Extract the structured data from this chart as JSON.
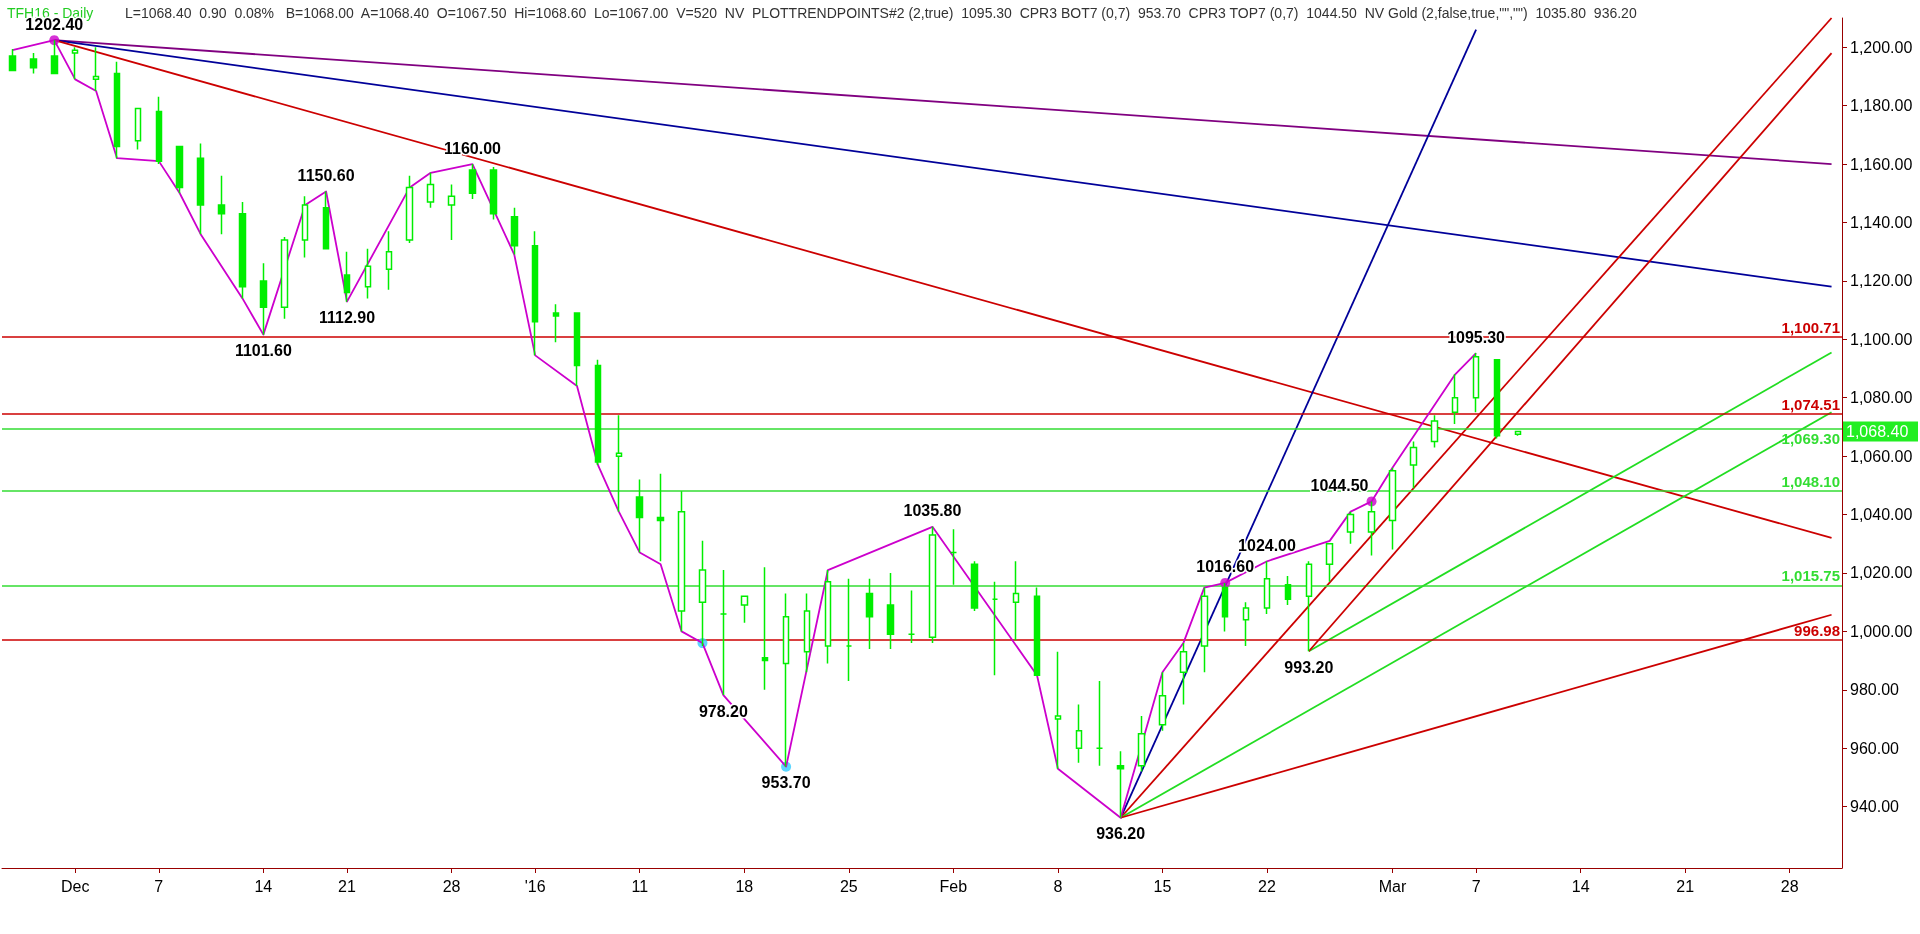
{
  "chart_data": {
    "type": "candlestick",
    "title": "TFH16 - Daily",
    "subtitle": "L=1068.40  0.90  0.08%   B=1068.00  A=1068.40  O=1067.50  Hi=1068.60  Lo=1067.00  V=520  NV  PLOTTRENDPOINTS#2 (2,true)  1095.30  CPR3 BOT7 (0,7)  953.70  CPR3 TOP7 (0,7)  1044.50  NV Gold (2,false,true,\"\",\"\")  1035.80  936.20",
    "color": "#00ee00",
    "categories": [
      null,
      null,
      null,
      "Dec",
      null,
      null,
      null,
      "7",
      null,
      null,
      null,
      null,
      "14",
      null,
      null,
      null,
      "21",
      null,
      null,
      null,
      null,
      "28",
      null,
      null,
      null,
      "'16",
      null,
      null,
      null,
      null,
      "11",
      null,
      null,
      null,
      null,
      "18",
      null,
      null,
      null,
      null,
      "25",
      null,
      null,
      null,
      null,
      "Feb",
      null,
      null,
      null,
      null,
      "8",
      null,
      null,
      null,
      null,
      "15",
      null,
      null,
      null,
      null,
      "22",
      null,
      null,
      null,
      null,
      null,
      "Mar",
      null,
      null,
      null,
      "7",
      null,
      null,
      null,
      null,
      "14",
      null,
      null,
      null,
      null,
      "21",
      null,
      null,
      null,
      null,
      "28",
      null,
      null
    ],
    "ohlc": [
      [
        1197,
        1199.4,
        1192,
        1192
      ],
      [
        1196,
        1198,
        1191,
        1193
      ],
      [
        1197,
        1202.4,
        1191,
        1191
      ],
      [
        1198,
        1200,
        1189,
        1199
      ],
      [
        1189,
        1200,
        1185,
        1190
      ],
      [
        1191,
        1195,
        1162,
        1166
      ],
      [
        1168,
        1179,
        1165,
        1179
      ],
      [
        1178,
        1183,
        1160,
        1161
      ],
      [
        1166,
        1166,
        1150,
        1152
      ],
      [
        1162,
        1167,
        1136,
        1146
      ],
      [
        1146,
        1156,
        1136,
        1143
      ],
      [
        1143,
        1147,
        1114,
        1118
      ],
      [
        1120,
        1126,
        1101.6,
        1111
      ],
      [
        1111,
        1135,
        1107,
        1134
      ],
      [
        1134,
        1149,
        1128,
        1146
      ],
      [
        1145,
        1150.6,
        1131,
        1131
      ],
      [
        1122,
        1130,
        1112.9,
        1116
      ],
      [
        1118,
        1131,
        1114,
        1125
      ],
      [
        1124,
        1137,
        1117,
        1130
      ],
      [
        1134,
        1156,
        1133,
        1152
      ],
      [
        1147,
        1157,
        1145,
        1153
      ],
      [
        1146,
        1153,
        1134,
        1149
      ],
      [
        1158,
        1160,
        1148,
        1150
      ],
      [
        1158,
        1159,
        1141,
        1143
      ],
      [
        1142,
        1145,
        1129,
        1132
      ],
      [
        1132,
        1137,
        1094.5,
        1106
      ],
      [
        1109,
        1112,
        1099,
        1108
      ],
      [
        1109,
        1109,
        1084,
        1091
      ],
      [
        1091,
        1093,
        1057,
        1058
      ],
      [
        1060,
        1074,
        1041,
        1061
      ],
      [
        1046,
        1052,
        1027,
        1039
      ],
      [
        1039,
        1054,
        1024,
        1038
      ],
      [
        1007,
        1048,
        1000,
        1041
      ],
      [
        1010,
        1031,
        995,
        1021
      ],
      [
        1006,
        1021,
        978.2,
        1006
      ],
      [
        1009,
        1012,
        1003,
        1012
      ],
      [
        991,
        1022,
        980,
        990
      ],
      [
        989,
        1013,
        953.7,
        1005
      ],
      [
        993,
        1013,
        986,
        1007
      ],
      [
        995,
        1021,
        989,
        1017
      ],
      [
        995,
        1018,
        983,
        995
      ],
      [
        1013,
        1018,
        994,
        1005
      ],
      [
        1009,
        1020,
        994,
        999
      ],
      [
        999,
        1014,
        996,
        999
      ],
      [
        998,
        1035.8,
        996,
        1033
      ],
      [
        1027,
        1035,
        1016,
        1027
      ],
      [
        1023,
        1024,
        1007,
        1008
      ],
      [
        1011,
        1017,
        985,
        1011
      ],
      [
        1010,
        1024,
        997,
        1013
      ],
      [
        1012,
        1015,
        985,
        985
      ],
      [
        970,
        993,
        953,
        971
      ],
      [
        960,
        975,
        955,
        966
      ],
      [
        960,
        983,
        954,
        960
      ],
      [
        954,
        959,
        936.2,
        953
      ],
      [
        954,
        971,
        952,
        965
      ],
      [
        968,
        986,
        966,
        978
      ],
      [
        986,
        996,
        975,
        993
      ],
      [
        995,
        1015,
        986,
        1012
      ],
      [
        1015,
        1016.6,
        1000,
        1005
      ],
      [
        1004,
        1010,
        995,
        1008
      ],
      [
        1008,
        1024,
        1006,
        1018
      ],
      [
        1016,
        1019,
        1009,
        1011
      ],
      [
        1012,
        1024,
        993.2,
        1023
      ],
      [
        1023,
        1030,
        1017,
        1030
      ],
      [
        1034,
        1041,
        1030,
        1040
      ],
      [
        1034,
        1044.5,
        1026,
        1041
      ],
      [
        1038,
        1056,
        1028,
        1055
      ],
      [
        1057,
        1065,
        1049,
        1063
      ],
      [
        1065,
        1074,
        1063,
        1072
      ],
      [
        1075,
        1088,
        1071,
        1080
      ],
      [
        1080,
        1095.3,
        1075,
        1094
      ],
      [
        1093,
        1093,
        1066,
        1067
      ],
      [
        1067.5,
        1068.6,
        1067,
        1068.4
      ],
      null,
      null,
      null,
      null,
      null,
      null,
      null,
      null,
      null,
      null,
      null,
      null,
      null,
      null,
      null
    ],
    "series": [
      {
        "type": "line",
        "color": "#cc00cc",
        "values": [
          1199,
          null,
          1202.4,
          1189,
          1185,
          1162,
          null,
          1161,
          1150,
          1136,
          null,
          1114,
          1101.6,
          null,
          1146,
          1150.6,
          1112.9,
          null,
          null,
          1152,
          1157,
          null,
          1160,
          null,
          1129,
          1094.5,
          null,
          1084,
          1057,
          1041,
          1027,
          1023,
          1000,
          996,
          978.2,
          null,
          null,
          953.7,
          null,
          1021,
          null,
          null,
          null,
          null,
          1035.8,
          null,
          null,
          null,
          null,
          985,
          953,
          null,
          null,
          936.2,
          null,
          986,
          996,
          1015,
          1016.6,
          null,
          1024,
          null,
          null,
          1031,
          1041,
          1044.5,
          1056,
          null,
          null,
          1088,
          1095.3,
          null,
          null,
          null,
          null,
          null,
          null,
          null,
          null,
          null,
          null,
          null,
          null,
          null,
          null,
          null,
          null,
          null
        ],
        "value_labels": [
          null,
          null,
          "1202.40",
          null,
          null,
          null,
          null,
          null,
          null,
          null,
          null,
          null,
          "1101.60",
          null,
          null,
          "1150.60",
          "1112.90",
          null,
          null,
          null,
          null,
          null,
          "1160.00",
          null,
          null,
          null,
          null,
          null,
          null,
          null,
          null,
          null,
          null,
          null,
          "978.20",
          null,
          null,
          "953.70",
          null,
          null,
          null,
          null,
          null,
          null,
          "1035.80",
          null,
          null,
          null,
          null,
          null,
          null,
          null,
          null,
          "936.20",
          null,
          null,
          null,
          null,
          "1016.60",
          null,
          "1024.00",
          null,
          null,
          null,
          null,
          "1044.50",
          null,
          null,
          null,
          null,
          "1095.30",
          null,
          null,
          null,
          null,
          null,
          null,
          null,
          null,
          null,
          null,
          null,
          null,
          null,
          null,
          null,
          null,
          null
        ]
      },
      {
        "type": "line",
        "color": "#800080",
        "values": [
          null,
          null,
          1202.4,
          null,
          null,
          null,
          null,
          null,
          null,
          null,
          null,
          null,
          null,
          null,
          null,
          null,
          null,
          null,
          null,
          null,
          null,
          null,
          null,
          null,
          null,
          null,
          null,
          null,
          null,
          null,
          null,
          null,
          null,
          null,
          null,
          null,
          null,
          null,
          null,
          null,
          null,
          null,
          null,
          null,
          null,
          null,
          null,
          null,
          null,
          null,
          null,
          null,
          null,
          null,
          null,
          null,
          null,
          null,
          null,
          null,
          null,
          null,
          null,
          null,
          null,
          null,
          null,
          null,
          null,
          null,
          null,
          null,
          null,
          null,
          null,
          null,
          null,
          null,
          null,
          null,
          null,
          null,
          null,
          null,
          null,
          null,
          null,
          1160
        ]
      },
      {
        "type": "line",
        "color": "#000099",
        "values": [
          null,
          null,
          1202.4,
          null,
          null,
          null,
          null,
          null,
          null,
          null,
          null,
          null,
          null,
          null,
          null,
          null,
          null,
          null,
          null,
          null,
          null,
          null,
          null,
          null,
          null,
          null,
          null,
          null,
          null,
          null,
          null,
          null,
          null,
          null,
          null,
          null,
          null,
          null,
          null,
          null,
          null,
          null,
          null,
          null,
          null,
          null,
          null,
          null,
          null,
          null,
          null,
          null,
          null,
          null,
          null,
          null,
          null,
          null,
          null,
          null,
          null,
          null,
          null,
          null,
          null,
          null,
          null,
          null,
          null,
          null,
          null,
          null,
          null,
          null,
          null,
          null,
          null,
          null,
          null,
          null,
          null,
          null,
          null,
          null,
          null,
          null,
          null,
          1118
        ]
      },
      {
        "type": "line",
        "color": "#cc0000",
        "values": [
          null,
          null,
          1202.4,
          null,
          null,
          null,
          null,
          null,
          null,
          null,
          null,
          null,
          null,
          null,
          null,
          null,
          null,
          null,
          null,
          null,
          null,
          null,
          null,
          null,
          null,
          null,
          null,
          null,
          null,
          null,
          null,
          null,
          null,
          null,
          null,
          null,
          null,
          null,
          null,
          null,
          null,
          null,
          null,
          null,
          null,
          null,
          null,
          null,
          null,
          null,
          null,
          null,
          null,
          null,
          null,
          null,
          null,
          null,
          null,
          null,
          null,
          null,
          null,
          null,
          null,
          null,
          null,
          null,
          null,
          null,
          null,
          null,
          null,
          null,
          null,
          null,
          null,
          null,
          null,
          null,
          null,
          null,
          null,
          null,
          null,
          null,
          null,
          1032
        ]
      },
      {
        "type": "line",
        "color": "#000099",
        "values": [
          null,
          null,
          null,
          null,
          null,
          null,
          null,
          null,
          null,
          null,
          null,
          null,
          null,
          null,
          null,
          null,
          null,
          null,
          null,
          null,
          null,
          null,
          null,
          null,
          null,
          null,
          null,
          null,
          null,
          null,
          null,
          null,
          null,
          null,
          null,
          null,
          null,
          null,
          null,
          null,
          null,
          null,
          null,
          null,
          null,
          null,
          null,
          null,
          null,
          null,
          null,
          null,
          null,
          936.2,
          null,
          null,
          null,
          null,
          null,
          null,
          null,
          null,
          null,
          null,
          null,
          null,
          null,
          null,
          null,
          null,
          1206,
          null,
          null,
          null,
          null,
          null,
          null,
          null,
          null,
          null,
          null,
          null,
          null,
          null,
          null,
          null,
          null,
          null
        ]
      },
      {
        "type": "line",
        "color": "#cc0000",
        "values": [
          null,
          null,
          null,
          null,
          null,
          null,
          null,
          null,
          null,
          null,
          null,
          null,
          null,
          null,
          null,
          null,
          null,
          null,
          null,
          null,
          null,
          null,
          null,
          null,
          null,
          null,
          null,
          null,
          null,
          null,
          null,
          null,
          null,
          null,
          null,
          null,
          null,
          null,
          null,
          null,
          null,
          null,
          null,
          null,
          null,
          null,
          null,
          null,
          null,
          null,
          null,
          null,
          null,
          936.2,
          null,
          null,
          null,
          null,
          null,
          null,
          null,
          null,
          null,
          null,
          null,
          null,
          null,
          null,
          null,
          null,
          null,
          null,
          null,
          null,
          null,
          null,
          null,
          null,
          null,
          null,
          null,
          null,
          null,
          null,
          null,
          null,
          null,
          1210
        ]
      },
      {
        "type": "line",
        "color": "#cc0000",
        "values": [
          null,
          null,
          null,
          null,
          null,
          null,
          null,
          null,
          null,
          null,
          null,
          null,
          null,
          null,
          null,
          null,
          null,
          null,
          null,
          null,
          null,
          null,
          null,
          null,
          null,
          null,
          null,
          null,
          null,
          null,
          null,
          null,
          null,
          null,
          null,
          null,
          null,
          null,
          null,
          null,
          null,
          null,
          null,
          null,
          null,
          null,
          null,
          null,
          null,
          null,
          null,
          null,
          null,
          null,
          null,
          null,
          null,
          null,
          null,
          null,
          null,
          null,
          993.2,
          null,
          null,
          null,
          null,
          null,
          null,
          null,
          null,
          null,
          null,
          null,
          null,
          null,
          null,
          null,
          null,
          null,
          null,
          null,
          null,
          null,
          null,
          null,
          null,
          1198
        ],
        "value_labels": [
          null,
          null,
          null,
          null,
          null,
          null,
          null,
          null,
          null,
          null,
          null,
          null,
          null,
          null,
          null,
          null,
          null,
          null,
          null,
          null,
          null,
          null,
          null,
          null,
          null,
          null,
          null,
          null,
          null,
          null,
          null,
          null,
          null,
          null,
          null,
          null,
          null,
          null,
          null,
          null,
          null,
          null,
          null,
          null,
          null,
          null,
          null,
          null,
          null,
          null,
          null,
          null,
          null,
          null,
          null,
          null,
          null,
          null,
          null,
          null,
          null,
          null,
          "993.20",
          null,
          null,
          null,
          null,
          null,
          null,
          null,
          null,
          null,
          null,
          null,
          null,
          null,
          null,
          null,
          null,
          null,
          null,
          null,
          null,
          null,
          null,
          null,
          null,
          null
        ]
      },
      {
        "type": "line",
        "color": "#22dd22",
        "values": [
          null,
          null,
          null,
          null,
          null,
          null,
          null,
          null,
          null,
          null,
          null,
          null,
          null,
          null,
          null,
          null,
          null,
          null,
          null,
          null,
          null,
          null,
          null,
          null,
          null,
          null,
          null,
          null,
          null,
          null,
          null,
          null,
          null,
          null,
          null,
          null,
          null,
          null,
          null,
          null,
          null,
          null,
          null,
          null,
          null,
          null,
          null,
          null,
          null,
          null,
          null,
          null,
          null,
          null,
          null,
          null,
          null,
          null,
          null,
          null,
          null,
          null,
          993.2,
          null,
          null,
          null,
          null,
          null,
          null,
          null,
          null,
          null,
          null,
          null,
          null,
          null,
          null,
          null,
          null,
          null,
          null,
          null,
          null,
          null,
          null,
          null,
          null,
          1095.5
        ]
      },
      {
        "type": "line",
        "color": "#22dd22",
        "values": [
          null,
          null,
          null,
          null,
          null,
          null,
          null,
          null,
          null,
          null,
          null,
          null,
          null,
          null,
          null,
          null,
          null,
          null,
          null,
          null,
          null,
          null,
          null,
          null,
          null,
          null,
          null,
          null,
          null,
          null,
          null,
          null,
          null,
          null,
          null,
          null,
          null,
          null,
          null,
          null,
          null,
          null,
          null,
          null,
          null,
          null,
          null,
          null,
          null,
          null,
          null,
          null,
          null,
          936.2,
          null,
          null,
          null,
          null,
          null,
          null,
          null,
          null,
          null,
          null,
          null,
          null,
          null,
          null,
          null,
          null,
          null,
          null,
          null,
          null,
          null,
          null,
          null,
          null,
          null,
          null,
          null,
          null,
          null,
          null,
          null,
          null,
          null,
          1075
        ]
      },
      {
        "type": "line",
        "color": "#cc0000",
        "values": [
          null,
          null,
          null,
          null,
          null,
          null,
          null,
          null,
          null,
          null,
          null,
          null,
          null,
          null,
          null,
          null,
          null,
          null,
          null,
          null,
          null,
          null,
          null,
          null,
          null,
          null,
          null,
          null,
          null,
          null,
          null,
          null,
          null,
          null,
          null,
          null,
          null,
          null,
          null,
          null,
          null,
          null,
          null,
          null,
          null,
          null,
          null,
          null,
          null,
          null,
          null,
          null,
          null,
          936.2,
          null,
          null,
          null,
          null,
          null,
          null,
          null,
          null,
          null,
          null,
          null,
          null,
          null,
          null,
          null,
          null,
          null,
          null,
          null,
          null,
          null,
          null,
          null,
          null,
          null,
          null,
          null,
          null,
          null,
          null,
          null,
          null,
          null,
          1005.7
        ]
      },
      {
        "type": "scatter",
        "color": "#cc00cc",
        "marker": "circle",
        "values": [
          null,
          null,
          1202.4,
          null,
          null,
          null,
          null,
          null,
          null,
          null,
          null,
          null,
          null,
          null,
          null,
          null,
          null,
          null,
          null,
          null,
          null,
          null,
          null,
          null,
          null,
          null,
          null,
          null,
          null,
          null,
          null,
          null,
          null,
          null,
          null,
          null,
          null,
          null,
          null,
          null,
          null,
          null,
          null,
          null,
          null,
          null,
          null,
          null,
          null,
          null,
          null,
          null,
          null,
          null,
          null,
          null,
          null,
          null,
          1016.6,
          null,
          null,
          null,
          null,
          null,
          null,
          1044.5,
          null,
          null,
          null,
          null,
          null,
          null,
          null,
          null,
          null,
          null,
          null,
          null,
          null,
          null,
          null,
          null,
          null,
          null,
          null,
          null,
          null,
          null
        ]
      },
      {
        "type": "scatter",
        "color": "#33ccff",
        "marker": "circle",
        "values": [
          null,
          null,
          null,
          null,
          null,
          null,
          null,
          null,
          null,
          null,
          null,
          null,
          null,
          null,
          null,
          null,
          null,
          null,
          null,
          null,
          null,
          null,
          null,
          null,
          null,
          null,
          null,
          null,
          null,
          null,
          null,
          null,
          null,
          996,
          null,
          null,
          null,
          953.7,
          null,
          null,
          null,
          null,
          null,
          null,
          null,
          null,
          null,
          null,
          null,
          null,
          null,
          null,
          null,
          null,
          null,
          null,
          null,
          null,
          null,
          null,
          null,
          null,
          null,
          null,
          null,
          null,
          null,
          null,
          null,
          null,
          null,
          null,
          null,
          null,
          null,
          null,
          null,
          null,
          null,
          null,
          null,
          null,
          null,
          null,
          null,
          null,
          null,
          null
        ]
      }
    ],
    "ylim": [
      919,
      1210
    ],
    "yticks": [
      {
        "value": 940,
        "label": "940.00"
      },
      {
        "value": 960,
        "label": "960.00"
      },
      {
        "value": 980,
        "label": "980.00"
      },
      {
        "value": 1000,
        "label": "1,000.00"
      },
      {
        "value": 1020,
        "label": "1,020.00"
      },
      {
        "value": 1040,
        "label": "1,040.00"
      },
      {
        "value": 1060,
        "label": "1,060.00"
      },
      {
        "value": 1080,
        "label": "1,080.00"
      },
      {
        "value": 1100,
        "label": "1,100.00"
      },
      {
        "value": 1120,
        "label": "1,120.00"
      },
      {
        "value": 1140,
        "label": "1,140.00"
      },
      {
        "value": 1160,
        "label": "1,160.00"
      },
      {
        "value": 1180,
        "label": "1,180.00"
      },
      {
        "value": 1200,
        "label": "1,200.00"
      }
    ],
    "ref_lines": [
      {
        "axis": "y",
        "value": 1100.71,
        "label": "1,100.71",
        "color": "#cc0000"
      },
      {
        "axis": "y",
        "value": 1074.51,
        "label": "1,074.51",
        "color": "#cc0000"
      },
      {
        "axis": "y",
        "value": 1069.3,
        "label": "1,069.30",
        "color": "#33dd33"
      },
      {
        "axis": "y",
        "value": 1048.1,
        "label": "1,048.10",
        "color": "#33dd33"
      },
      {
        "axis": "y",
        "value": 1015.75,
        "label": "1,015.75",
        "color": "#33dd33"
      },
      {
        "axis": "y",
        "value": 996.98,
        "label": "996.98",
        "color": "#cc0000"
      }
    ],
    "annotations": [
      "1,068.40"
    ]
  }
}
